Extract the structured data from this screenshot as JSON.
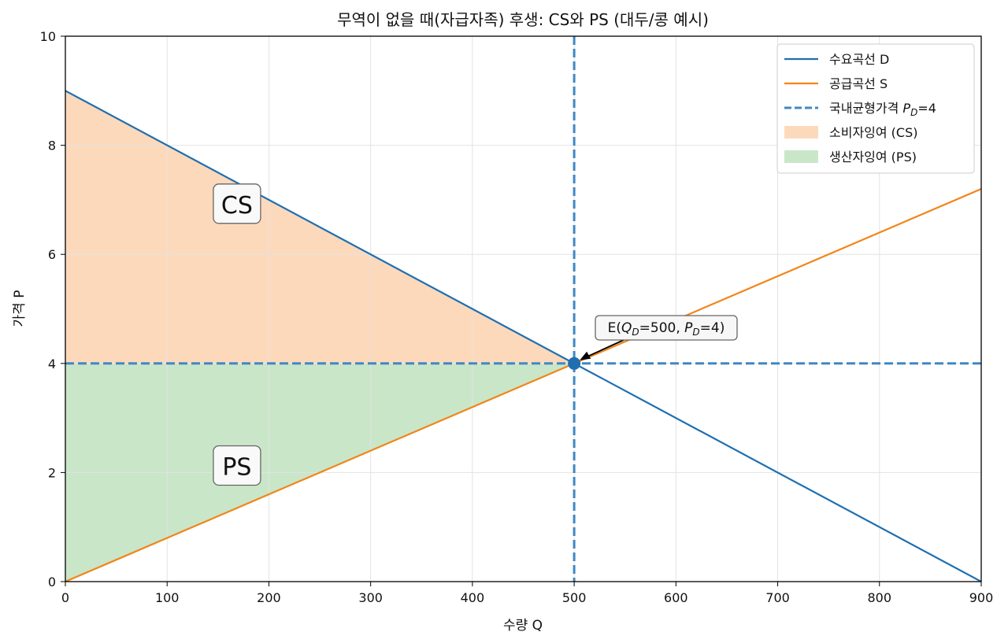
{
  "chart_data": {
    "type": "line",
    "title": "무역이 없을 때(자급자족) 후생: CS와 PS (대두/콩 예시)",
    "xlabel": "수량 Q",
    "ylabel": "가격 P",
    "xlim": [
      0,
      900
    ],
    "ylim": [
      0,
      10
    ],
    "x_ticks": [
      0,
      100,
      200,
      300,
      400,
      500,
      600,
      700,
      800,
      900
    ],
    "y_ticks": [
      0,
      2,
      4,
      6,
      8,
      10
    ],
    "grid": true,
    "legend_position": "top-right",
    "series": [
      {
        "name": "수요곡선 D",
        "kind": "line",
        "color": "#1f6fb0",
        "x": [
          0,
          900
        ],
        "y": [
          9,
          0
        ]
      },
      {
        "name": "공급곡선 S",
        "kind": "line",
        "color": "#f28518",
        "x": [
          0,
          900
        ],
        "y": [
          0,
          7.2
        ]
      },
      {
        "name": "국내균형가격",
        "name_suffix": "=4",
        "kind": "dashed",
        "color": "#3f88c5",
        "y": 4
      },
      {
        "name": "소비자잉여 (CS)",
        "kind": "area",
        "color": "#fdd9bc",
        "polygon": [
          [
            0,
            9
          ],
          [
            500,
            4
          ],
          [
            0,
            4
          ]
        ]
      },
      {
        "name": "생산자잉여 (PS)",
        "kind": "area",
        "color": "#c9e6c9",
        "polygon": [
          [
            0,
            0
          ],
          [
            500,
            4
          ],
          [
            0,
            4
          ]
        ]
      }
    ],
    "vertical_line": {
      "x": 500,
      "color": "#3f88c5"
    },
    "equilibrium_point": {
      "x": 500,
      "y": 4,
      "color": "#1f6fb0"
    },
    "annotation": {
      "text_prefix": "E(",
      "text_mid": "=500, ",
      "text_suffix": "=4)",
      "x": 500,
      "y": 4
    },
    "region_labels": [
      {
        "text": "CS",
        "x": 140,
        "y": 6.9
      },
      {
        "text": "PS",
        "x": 140,
        "y": 2.1
      }
    ]
  }
}
